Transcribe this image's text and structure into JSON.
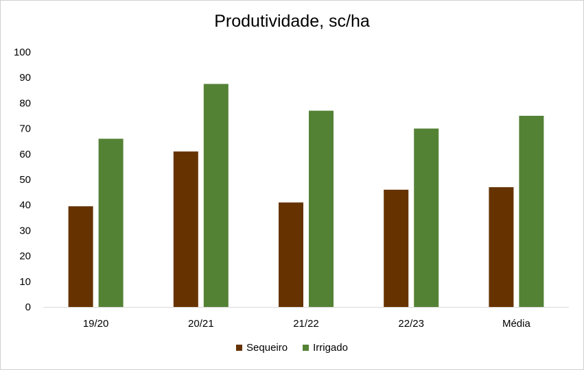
{
  "chart_data": {
    "type": "bar",
    "title": "Produtividade, sc/ha",
    "categories": [
      "19/20",
      "20/21",
      "21/22",
      "22/23",
      "Média"
    ],
    "series": [
      {
        "name": "Sequeiro",
        "color": "#663300",
        "values": [
          39.5,
          61,
          41,
          46,
          47
        ]
      },
      {
        "name": "Irrigado",
        "color": "#548235",
        "values": [
          66,
          87.5,
          77,
          70,
          75
        ]
      }
    ],
    "ylim": [
      0,
      100
    ],
    "yticks": [
      0,
      10,
      20,
      30,
      40,
      50,
      60,
      70,
      80,
      90,
      100
    ],
    "grid": false,
    "legend_position": "bottom"
  }
}
